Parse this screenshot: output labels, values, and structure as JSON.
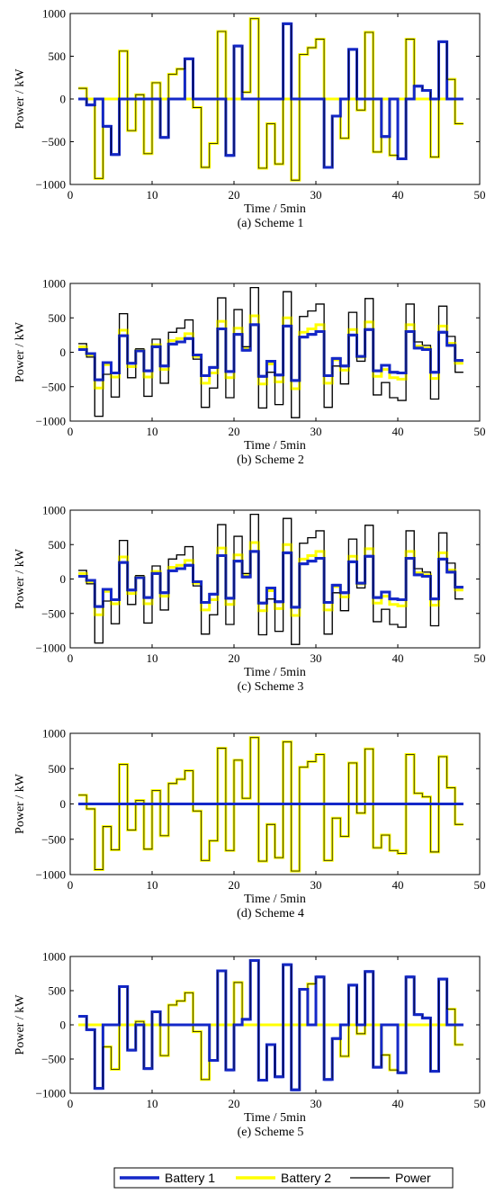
{
  "legend": {
    "items": [
      {
        "label": "Battery 1",
        "color": "#1428c8"
      },
      {
        "label": "Battery 2",
        "color": "#ffff00"
      },
      {
        "label": "Power",
        "color": "#000000"
      }
    ]
  },
  "chart_data": [
    {
      "type": "line",
      "title": "(a) Scheme 1",
      "xlabel": "Time / 5min",
      "ylabel": "Power / kW",
      "xlim": [
        0,
        50
      ],
      "ylim": [
        -1000,
        1000
      ],
      "xticks": [
        0,
        10,
        20,
        30,
        40,
        50
      ],
      "yticks": [
        1000,
        500,
        0,
        -500,
        -1000
      ],
      "grid": false,
      "series": [
        {
          "name": "Power",
          "step": true,
          "x_start": 1,
          "values": [
            125,
            -70,
            -930,
            -320,
            -650,
            560,
            -370,
            50,
            -640,
            190,
            -450,
            290,
            350,
            470,
            -100,
            -800,
            -520,
            790,
            -660,
            620,
            80,
            940,
            -810,
            -290,
            -760,
            880,
            -950,
            520,
            600,
            700,
            -800,
            -200,
            -460,
            580,
            -130,
            780,
            -620,
            -440,
            -660,
            -700,
            700,
            150,
            100,
            -680,
            670,
            230,
            -290
          ]
        },
        {
          "name": "Battery 1",
          "step": true,
          "x_start": 1,
          "values": [
            0,
            -70,
            0,
            -320,
            -650,
            0,
            0,
            0,
            0,
            0,
            -450,
            0,
            0,
            470,
            0,
            0,
            0,
            0,
            -660,
            620,
            0,
            0,
            0,
            0,
            0,
            880,
            0,
            0,
            0,
            0,
            -800,
            -200,
            0,
            580,
            0,
            0,
            0,
            -440,
            0,
            -700,
            0,
            150,
            100,
            0,
            670,
            0,
            0
          ]
        },
        {
          "name": "Battery 2",
          "step": true,
          "x_start": 1,
          "values": [
            125,
            0,
            -930,
            0,
            0,
            560,
            -370,
            50,
            -640,
            190,
            0,
            290,
            350,
            0,
            -100,
            -800,
            -520,
            790,
            0,
            0,
            80,
            940,
            -810,
            -290,
            -760,
            0,
            -950,
            520,
            600,
            700,
            0,
            0,
            -460,
            0,
            -130,
            780,
            -620,
            0,
            -660,
            0,
            700,
            0,
            0,
            -680,
            0,
            230,
            -290
          ]
        }
      ]
    },
    {
      "type": "line",
      "title": "(b) Scheme 2",
      "xlabel": "Time / 5min",
      "ylabel": "Power / kW",
      "xlim": [
        0,
        50
      ],
      "ylim": [
        -1000,
        1000
      ],
      "xticks": [
        0,
        10,
        20,
        30,
        40,
        50
      ],
      "yticks": [
        1000,
        500,
        0,
        -500,
        -1000
      ],
      "grid": false,
      "series": [
        {
          "name": "Power",
          "step": true,
          "x_start": 1,
          "values": [
            125,
            -70,
            -930,
            -320,
            -650,
            560,
            -370,
            50,
            -640,
            190,
            -450,
            290,
            350,
            470,
            -100,
            -800,
            -520,
            790,
            -660,
            620,
            80,
            940,
            -810,
            -290,
            -760,
            880,
            -950,
            520,
            600,
            700,
            -800,
            -200,
            -460,
            580,
            -130,
            780,
            -620,
            -440,
            -660,
            -700,
            700,
            150,
            100,
            -680,
            670,
            230,
            -290
          ]
        },
        {
          "name": "Battery 1",
          "step": true,
          "x_start": 1,
          "values": [
            40,
            -20,
            -400,
            -150,
            -300,
            240,
            -160,
            20,
            -270,
            80,
            -200,
            120,
            150,
            200,
            -40,
            -340,
            -220,
            340,
            -280,
            260,
            30,
            400,
            -350,
            -130,
            -330,
            380,
            -410,
            220,
            260,
            300,
            -340,
            -90,
            -200,
            250,
            -60,
            330,
            -270,
            -190,
            -290,
            -300,
            300,
            60,
            40,
            -290,
            290,
            100,
            -120
          ]
        },
        {
          "name": "Battery 2",
          "step": true,
          "x_start": 1,
          "values": [
            80,
            -40,
            -520,
            -180,
            -360,
            320,
            -210,
            30,
            -360,
            110,
            -250,
            170,
            200,
            270,
            -60,
            -450,
            -300,
            450,
            -370,
            350,
            50,
            530,
            -460,
            -170,
            -430,
            500,
            -530,
            290,
            340,
            400,
            -450,
            -110,
            -260,
            330,
            -70,
            440,
            -350,
            -250,
            -370,
            -390,
            400,
            90,
            60,
            -380,
            380,
            130,
            -160
          ]
        }
      ]
    },
    {
      "type": "line",
      "title": "(c) Scheme 3",
      "xlabel": "Time / 5min",
      "ylabel": "Power / kW",
      "xlim": [
        0,
        50
      ],
      "ylim": [
        -1000,
        1000
      ],
      "xticks": [
        0,
        10,
        20,
        30,
        40,
        50
      ],
      "yticks": [
        1000,
        500,
        0,
        -500,
        -1000
      ],
      "grid": false,
      "series": [
        {
          "name": "Power",
          "step": true,
          "x_start": 1,
          "values": [
            125,
            -70,
            -930,
            -320,
            -650,
            560,
            -370,
            50,
            -640,
            190,
            -450,
            290,
            350,
            470,
            -100,
            -800,
            -520,
            790,
            -660,
            620,
            80,
            940,
            -810,
            -290,
            -760,
            880,
            -950,
            520,
            600,
            700,
            -800,
            -200,
            -460,
            580,
            -130,
            780,
            -620,
            -440,
            -660,
            -700,
            700,
            150,
            100,
            -680,
            670,
            230,
            -290
          ]
        },
        {
          "name": "Battery 1",
          "step": true,
          "x_start": 1,
          "values": [
            40,
            -20,
            -400,
            -150,
            -300,
            240,
            -160,
            20,
            -270,
            80,
            -200,
            120,
            150,
            200,
            -40,
            -340,
            -220,
            340,
            -280,
            260,
            30,
            400,
            -350,
            -130,
            -330,
            380,
            -410,
            220,
            260,
            300,
            -340,
            -90,
            -200,
            250,
            -60,
            330,
            -270,
            -190,
            -290,
            -300,
            300,
            60,
            40,
            -290,
            290,
            100,
            -120
          ]
        },
        {
          "name": "Battery 2",
          "step": true,
          "x_start": 1,
          "values": [
            80,
            -40,
            -520,
            -180,
            -360,
            320,
            -210,
            30,
            -360,
            110,
            -250,
            170,
            200,
            270,
            -60,
            -450,
            -300,
            450,
            -370,
            350,
            50,
            530,
            -460,
            -170,
            -430,
            500,
            -530,
            290,
            340,
            400,
            -450,
            -110,
            -260,
            330,
            -70,
            440,
            -350,
            -250,
            -370,
            -390,
            400,
            90,
            60,
            -380,
            380,
            130,
            -160
          ]
        }
      ]
    },
    {
      "type": "line",
      "title": "(d) Scheme 4",
      "xlabel": "Time / 5min",
      "ylabel": "Power / kW",
      "xlim": [
        0,
        50
      ],
      "ylim": [
        -1000,
        1000
      ],
      "xticks": [
        0,
        10,
        20,
        30,
        40,
        50
      ],
      "yticks": [
        1000,
        500,
        0,
        -500,
        -1000
      ],
      "grid": false,
      "series": [
        {
          "name": "Power",
          "step": true,
          "x_start": 1,
          "values": [
            125,
            -70,
            -930,
            -320,
            -650,
            560,
            -370,
            50,
            -640,
            190,
            -450,
            290,
            350,
            470,
            -100,
            -800,
            -520,
            790,
            -660,
            620,
            80,
            940,
            -810,
            -290,
            -760,
            880,
            -950,
            520,
            600,
            700,
            -800,
            -200,
            -460,
            580,
            -130,
            780,
            -620,
            -440,
            -660,
            -700,
            700,
            150,
            100,
            -680,
            670,
            230,
            -290
          ]
        },
        {
          "name": "Battery 1",
          "step": true,
          "x_start": 1,
          "values": [
            0,
            0,
            0,
            0,
            0,
            0,
            0,
            0,
            0,
            0,
            0,
            0,
            0,
            0,
            0,
            0,
            0,
            0,
            0,
            0,
            0,
            0,
            0,
            0,
            0,
            0,
            0,
            0,
            0,
            0,
            0,
            0,
            0,
            0,
            0,
            0,
            0,
            0,
            0,
            0,
            0,
            0,
            0,
            0,
            0,
            0,
            0
          ]
        },
        {
          "name": "Battery 2",
          "step": true,
          "x_start": 1,
          "values": [
            125,
            -70,
            -930,
            -320,
            -650,
            560,
            -370,
            50,
            -640,
            190,
            -450,
            290,
            350,
            470,
            -100,
            -800,
            -520,
            790,
            -660,
            620,
            80,
            940,
            -810,
            -290,
            -760,
            880,
            -950,
            520,
            600,
            700,
            -800,
            -200,
            -460,
            580,
            -130,
            780,
            -620,
            -440,
            -660,
            -700,
            700,
            150,
            100,
            -680,
            670,
            230,
            -290
          ]
        }
      ]
    },
    {
      "type": "line",
      "title": "(e) Scheme 5",
      "xlabel": "Time / 5min",
      "ylabel": "Power / kW",
      "xlim": [
        0,
        50
      ],
      "ylim": [
        -1000,
        1000
      ],
      "xticks": [
        0,
        10,
        20,
        30,
        40,
        50
      ],
      "yticks": [
        1000,
        500,
        0,
        -500,
        -1000
      ],
      "grid": false,
      "series": [
        {
          "name": "Power",
          "step": true,
          "x_start": 1,
          "values": [
            125,
            -70,
            -930,
            -320,
            -650,
            560,
            -370,
            50,
            -640,
            190,
            -450,
            290,
            350,
            470,
            -100,
            -800,
            -520,
            790,
            -660,
            620,
            80,
            940,
            -810,
            -290,
            -760,
            880,
            -950,
            520,
            600,
            700,
            -800,
            -200,
            -460,
            580,
            -130,
            780,
            -620,
            -440,
            -660,
            -700,
            700,
            150,
            100,
            -680,
            670,
            230,
            -290
          ]
        },
        {
          "name": "Battery 1",
          "step": true,
          "x_start": 1,
          "values": [
            125,
            -70,
            -930,
            0,
            0,
            560,
            -370,
            0,
            -640,
            190,
            0,
            0,
            0,
            0,
            0,
            0,
            -520,
            790,
            -660,
            0,
            80,
            940,
            -810,
            -290,
            -760,
            880,
            -950,
            520,
            0,
            700,
            -800,
            -200,
            0,
            580,
            0,
            780,
            -620,
            0,
            0,
            -700,
            700,
            150,
            100,
            -680,
            670,
            0,
            0
          ]
        },
        {
          "name": "Battery 2",
          "step": true,
          "x_start": 1,
          "values": [
            0,
            0,
            0,
            -320,
            -650,
            0,
            0,
            50,
            0,
            0,
            -450,
            290,
            350,
            470,
            -100,
            -800,
            0,
            0,
            0,
            620,
            0,
            0,
            0,
            0,
            0,
            0,
            0,
            0,
            600,
            0,
            0,
            0,
            -460,
            0,
            -130,
            0,
            0,
            -440,
            -660,
            0,
            0,
            0,
            0,
            0,
            0,
            230,
            -290
          ]
        }
      ]
    }
  ]
}
